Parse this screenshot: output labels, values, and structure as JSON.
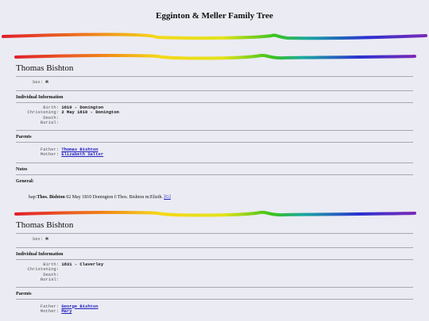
{
  "site_title": "Egginton & Meller Family Tree",
  "rainbow_colors": [
    "#e0202a",
    "#f07a1a",
    "#f4d81a",
    "#e4e21a",
    "#3cc41a",
    "#1aa8a0",
    "#2a32d0",
    "#7a2ab8"
  ],
  "persons": [
    {
      "name": "Thomas Bishton",
      "sex_label": "Sex:",
      "sex_value": "M",
      "individual_info_title": "Individual Information",
      "birth_label": "Birth:",
      "birth_value": "1810 - Donington",
      "christening_label": "Christening:",
      "christening_value": "2 May 1810 - Donington",
      "death_label": "Death:",
      "burial_label": "Burial:",
      "parents_title": "Parents",
      "father_label": "Father:",
      "father_name": "Thomas Bishton",
      "mother_label": "Mother:",
      "mother_name": "Elizabeth Salter",
      "notes_title": "Notes",
      "general_title": "General:",
      "note_prefix": "bap:",
      "note_name": "Thos. Bishton",
      "note_text": " 02 May 1810 Donington f:Thos. Bishton m:Elizth. ",
      "note_ref": "[G]"
    },
    {
      "name": "Thomas Bishton",
      "sex_label": "Sex:",
      "sex_value": "M",
      "individual_info_title": "Individual Information",
      "birth_label": "Birth:",
      "birth_value": "1831 - Claverley",
      "christening_label": "Christening:",
      "christening_value": "",
      "death_label": "Death:",
      "burial_label": "Burial:",
      "parents_title": "Parents",
      "father_label": "Father:",
      "father_name": "George Bishton",
      "mother_label": "Mother:",
      "mother_name": "Mary"
    }
  ]
}
